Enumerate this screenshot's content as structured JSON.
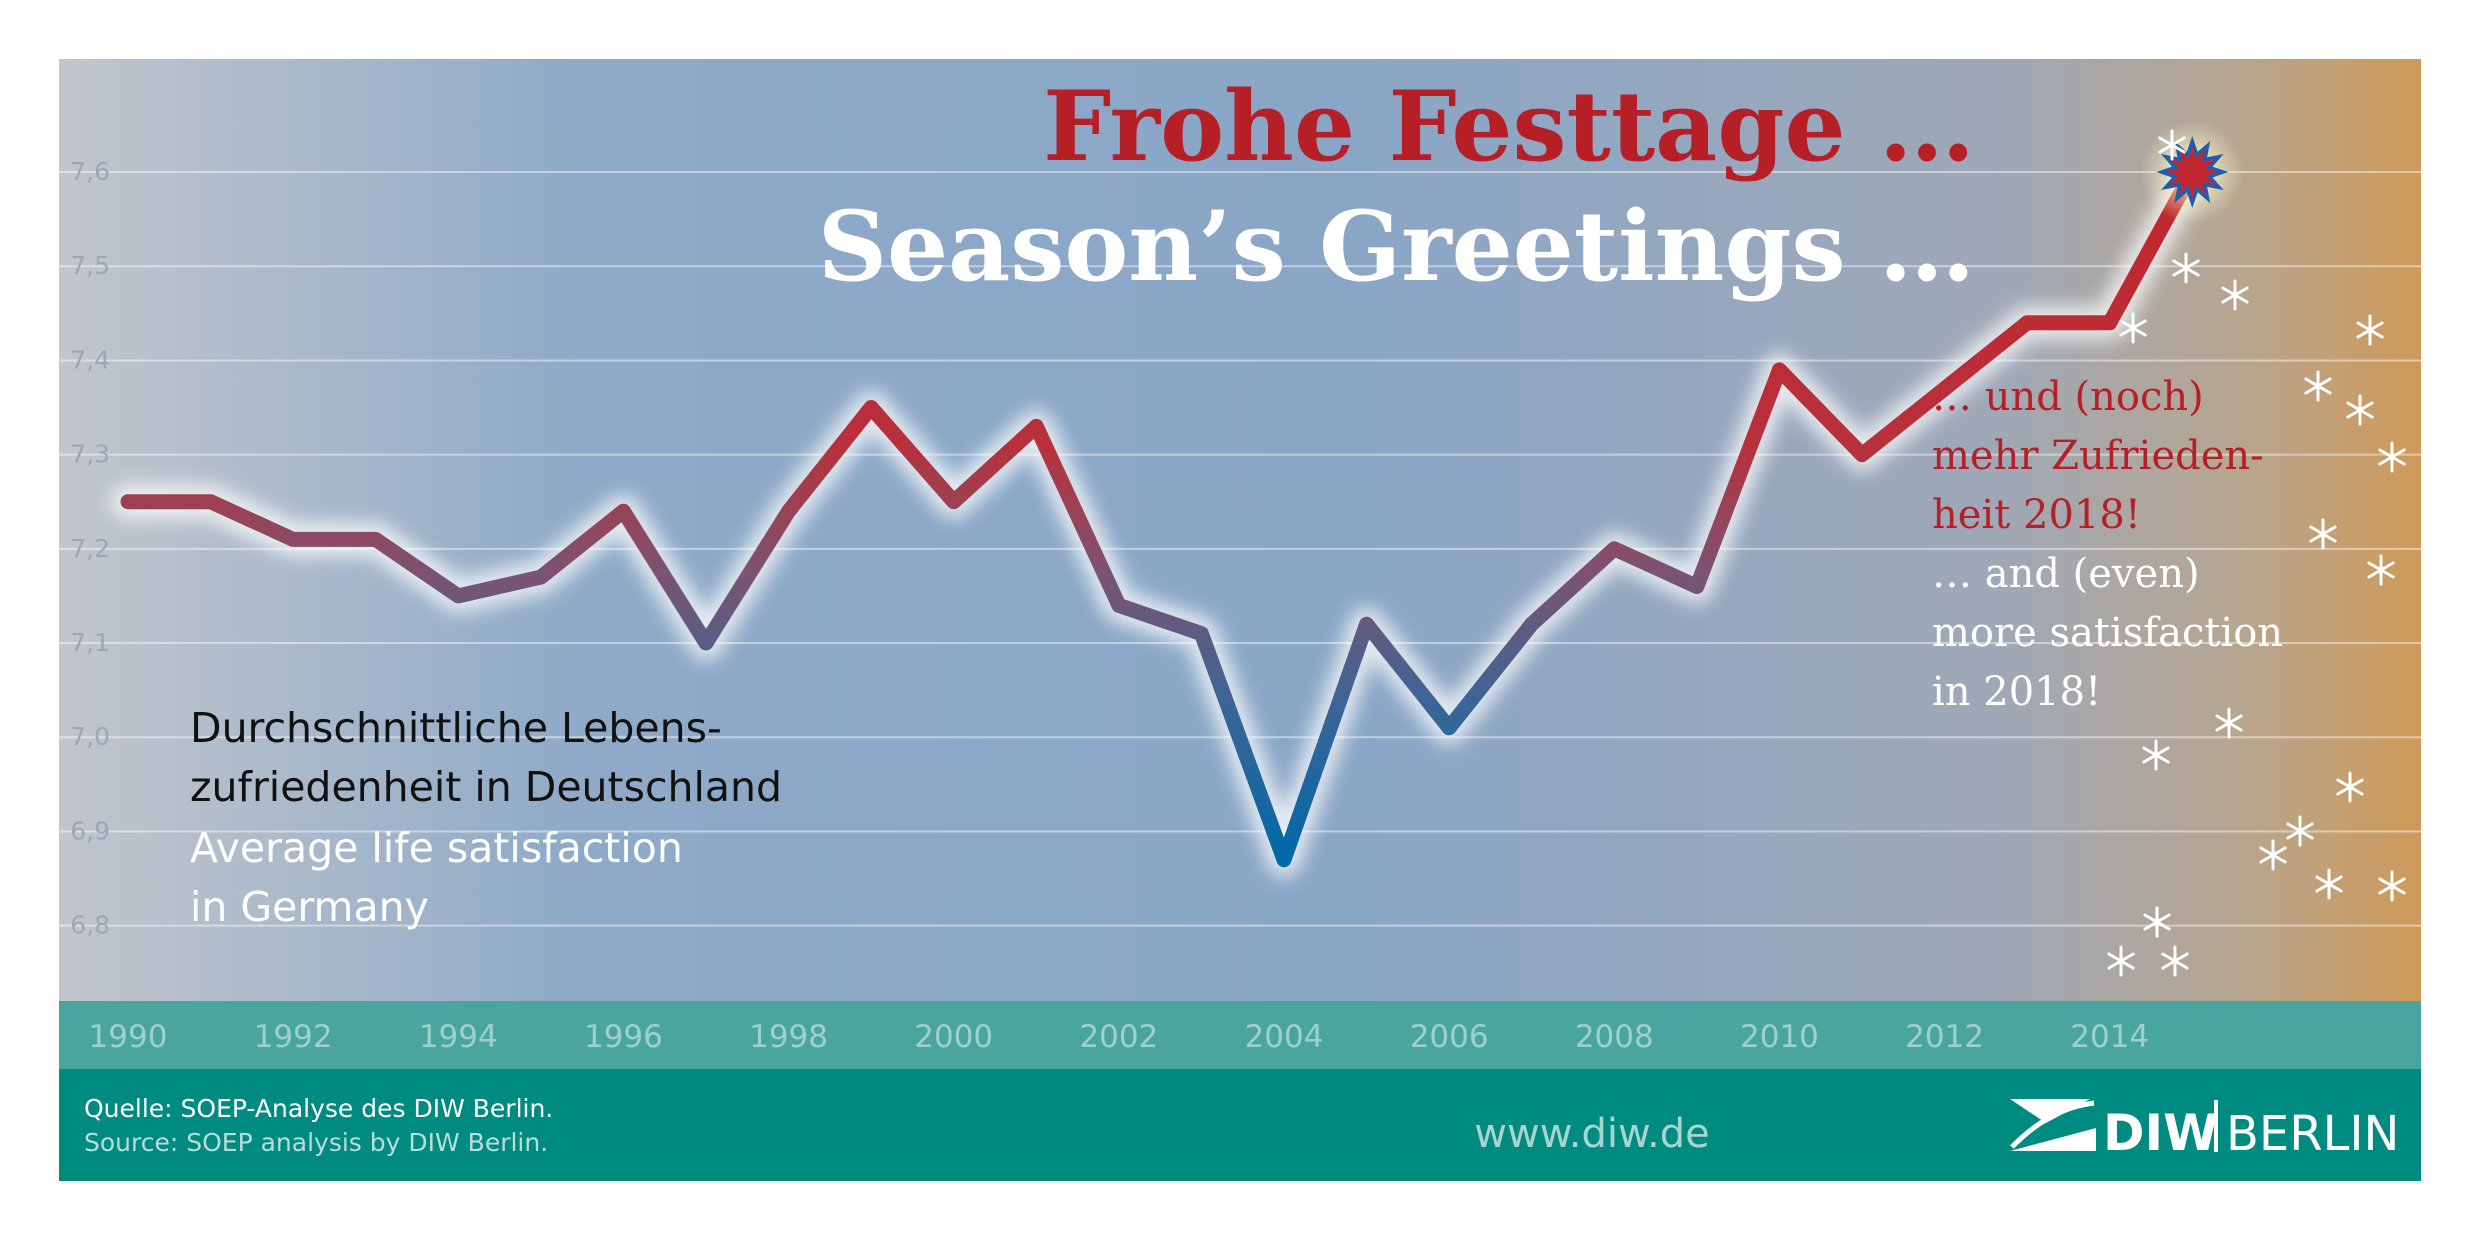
{
  "chart_data": {
    "type": "line",
    "headline": {
      "de": "Frohe Festtage …",
      "en": "Season’s Greetings …"
    },
    "subtitle": {
      "de": "Durchschnittliche Lebens-|zufriedenheit in Deutschland",
      "en": "Average life satisfaction|in Germany"
    },
    "annotation": {
      "de": "… und (noch)|mehr Zufrieden-|heit 2018!",
      "en": "… and (even)|more satisfaction|in 2018!"
    },
    "x": [
      1990,
      1991,
      1992,
      1993,
      1994,
      1995,
      1996,
      1997,
      1998,
      1999,
      2000,
      2001,
      2002,
      2003,
      2004,
      2005,
      2006,
      2007,
      2008,
      2009,
      2010,
      2011,
      2012,
      2013,
      2014,
      2015
    ],
    "series": [
      {
        "values": [
          7.25,
          7.25,
          7.21,
          7.21,
          7.15,
          7.17,
          7.24,
          7.1,
          7.24,
          7.35,
          7.25,
          7.33,
          7.14,
          7.11,
          6.87,
          7.12,
          7.01,
          7.12,
          7.2,
          7.16,
          7.39,
          7.3,
          7.37,
          7.44,
          7.44,
          7.6
        ]
      }
    ],
    "x_ticks": [
      "1990",
      "1992",
      "1994",
      "1996",
      "1998",
      "2000",
      "2002",
      "2004",
      "2006",
      "2008",
      "2010",
      "2012",
      "2014"
    ],
    "y_ticks": [
      "6,8",
      "6,9",
      "7,0",
      "7,1",
      "7,2",
      "7,3",
      "7,4",
      "7,5",
      "7,6"
    ],
    "xlim": [
      1990,
      2018
    ],
    "ylim": [
      6.72,
      7.72
    ],
    "grid": true,
    "colors": {
      "line_high": "#c2262e",
      "line_low": "#0068a8",
      "axis_band": "#4ba59f",
      "footer": "#008b80",
      "headline_de": "#b71f27",
      "headline_en": "#ffffff",
      "annotation_de": "#b71f27"
    }
  },
  "footer": {
    "source_de": "Quelle: SOEP-Analyse des DIW Berlin.",
    "source_en": "Source: SOEP analysis by DIW Berlin.",
    "url": "www.diw.de",
    "logo_text_1": "DIW",
    "logo_text_2": "BERLIN"
  },
  "decorations": {
    "star_icon": "star-burst-icon",
    "snowflake_icon": "asterisk-snowflake-icon"
  }
}
